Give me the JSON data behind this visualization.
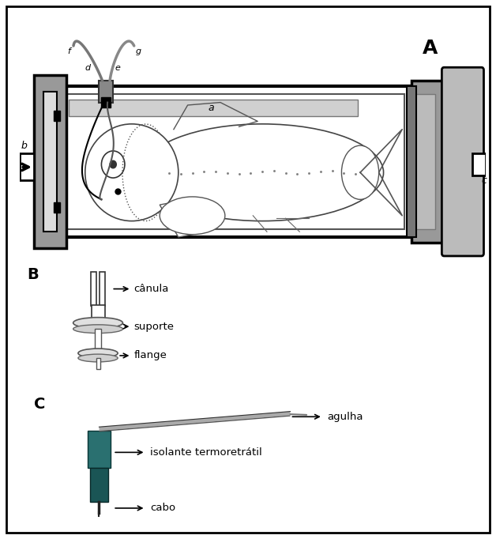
{
  "bg_color": "#ffffff",
  "panel_A_label": "A",
  "panel_B_label": "B",
  "panel_C_label": "C",
  "label_a": "a",
  "label_b": "b",
  "label_c": "c",
  "label_d": "d",
  "label_e": "e",
  "label_f": "f",
  "label_g": "g",
  "canula_text": "cânula",
  "suporte_text": "suporte",
  "flange_text": "flange",
  "agulha_text": "agulha",
  "isolante_text": "isolante termoretrátil",
  "cabo_text": "cabo",
  "teal_dark": "#1a5555",
  "teal_light": "#2a7070",
  "gray_dark": "#333333",
  "gray_med": "#888888",
  "gray_light": "#cccccc",
  "gray_fill": "#aaaaaa",
  "black": "#000000",
  "white": "#ffffff"
}
